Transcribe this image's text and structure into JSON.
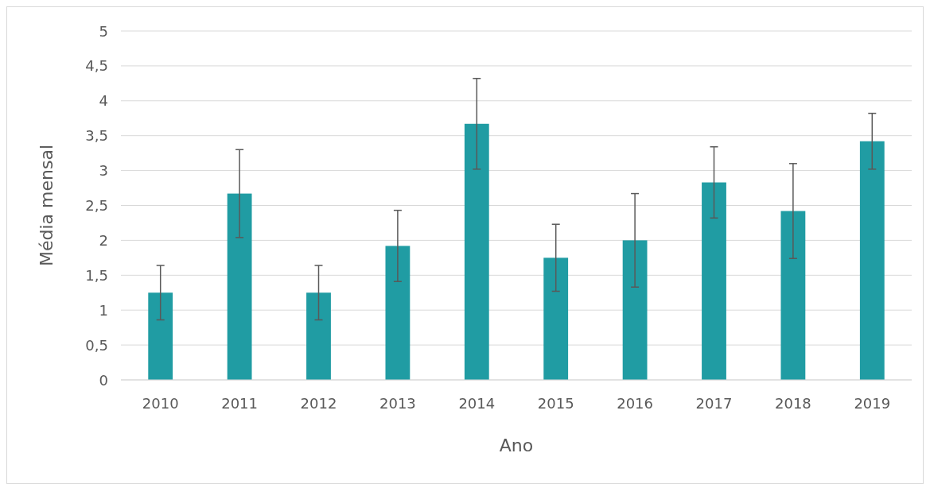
{
  "chart_data": {
    "type": "bar",
    "xlabel": "Ano",
    "ylabel": "Média mensal",
    "categories": [
      "2010",
      "2011",
      "2012",
      "2013",
      "2014",
      "2015",
      "2016",
      "2017",
      "2018",
      "2019"
    ],
    "values": [
      1.25,
      2.67,
      1.25,
      1.92,
      3.67,
      1.75,
      2.0,
      2.83,
      2.42,
      3.42
    ],
    "errors": [
      0.39,
      0.63,
      0.39,
      0.51,
      0.65,
      0.48,
      0.67,
      0.51,
      0.68,
      0.4
    ],
    "color": "#209ca3",
    "ylim": [
      0,
      5
    ],
    "yticks": [
      0,
      {
        "value": 0.5,
        "label": "0,5"
      },
      1,
      {
        "value": 1.5,
        "label": "1,5"
      },
      2,
      {
        "value": 2.5,
        "label": "2,5"
      },
      3,
      {
        "value": 3.5,
        "label": "3,5"
      },
      4,
      {
        "value": 4.5,
        "label": "4,5"
      },
      5
    ],
    "grid": "y"
  }
}
